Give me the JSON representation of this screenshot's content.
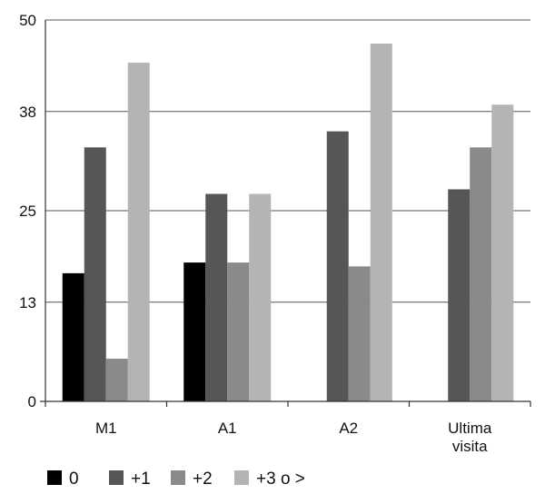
{
  "chart_data": {
    "type": "bar",
    "categories": [
      "M1",
      "A1",
      "A2",
      "Ultima\nvisita"
    ],
    "series": [
      {
        "name": "0",
        "color": "#000000",
        "values": [
          16.8,
          18.2,
          0,
          0
        ]
      },
      {
        "name": "+1",
        "color": "#565656",
        "values": [
          33.3,
          27.2,
          35.4,
          27.8
        ]
      },
      {
        "name": "+2",
        "color": "#8a8a8a",
        "values": [
          5.6,
          18.2,
          17.7,
          33.3
        ]
      },
      {
        "name": "+3 o >",
        "color": "#b4b4b4",
        "values": [
          44.4,
          27.2,
          46.9,
          38.9
        ]
      }
    ],
    "yticks": [
      0,
      13,
      25,
      38,
      50
    ],
    "ylim": [
      0,
      50
    ],
    "grid": true,
    "legend": "bottom"
  }
}
